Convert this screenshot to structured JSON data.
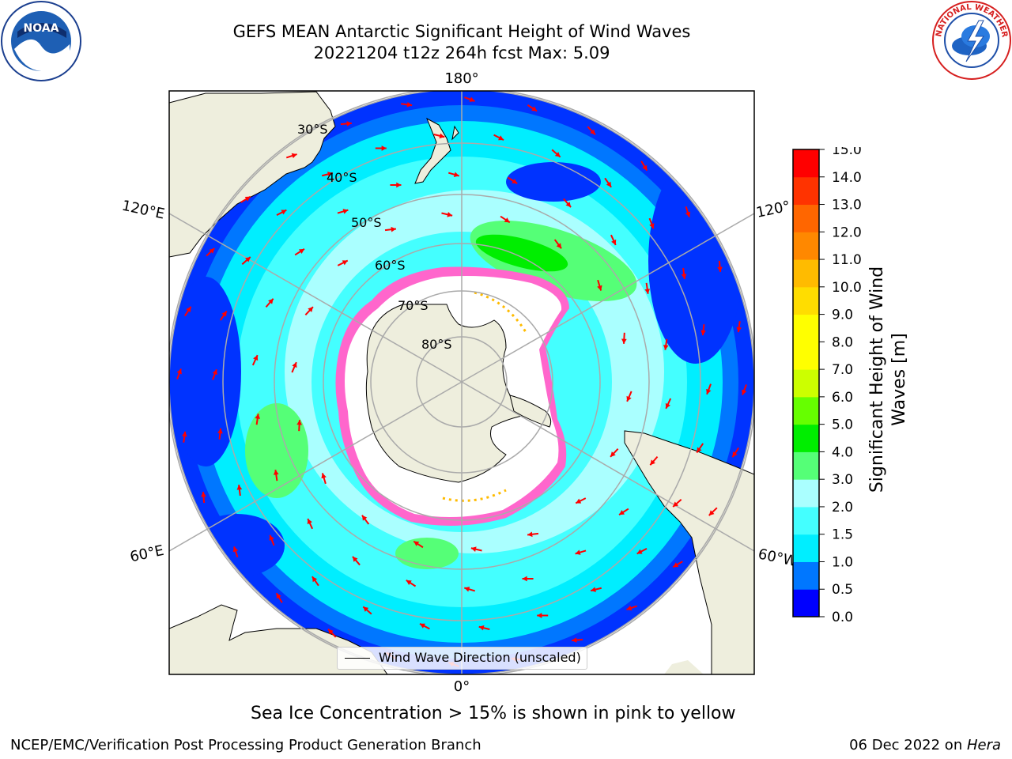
{
  "title": {
    "line1": "GEFS MEAN Antarctic Significant Height of Wind Waves",
    "line2": "20221204 t12z 264h fcst   Max: 5.09"
  },
  "logos": {
    "left": "noaa-logo",
    "right": "national-weather-service-logo",
    "left_text": "NOAA",
    "right_text": "NATIONAL WEATHER SERVICE"
  },
  "map": {
    "projection": "south-polar-stereographic",
    "lon_labels": {
      "top": "180°",
      "bottom": "0°",
      "upper_left": "120°E",
      "lower_left": "60°E",
      "upper_right": "120°",
      "lower_right": "60°W"
    },
    "lat_labels": [
      "30°S",
      "40°S",
      "50°S",
      "60°S",
      "70°S",
      "80°S"
    ],
    "legend": "Wind Wave Direction (unscaled)",
    "colors": {
      "land": "#eeeedd",
      "sea_ice": "#ffffff",
      "ice_edge": "#ff66cc",
      "arrows": "#ff0000",
      "grid": "#aaaaaa"
    }
  },
  "colorbar": {
    "label": "Significant Height of Wind Waves [m]",
    "ticks": [
      "0.0",
      "0.5",
      "1.0",
      "1.5",
      "2.0",
      "3.0",
      "4.0",
      "5.0",
      "6.0",
      "7.0",
      "8.0",
      "9.0",
      "10.0",
      "11.0",
      "12.0",
      "13.0",
      "14.0",
      "15.0"
    ],
    "colors": [
      "#0000ff",
      "#0077ff",
      "#00eeff",
      "#44ffff",
      "#aaffff",
      "#55ff77",
      "#00ee00",
      "#66ff00",
      "#ccff00",
      "#ffff00",
      "#ffff00",
      "#ffdd00",
      "#ffbb00",
      "#ff8800",
      "#ff6600",
      "#ff3300",
      "#ff0000"
    ]
  },
  "caption": "Sea Ice Concentration > 15% is shown in pink to yellow",
  "footer": {
    "left": "NCEP/EMC/Verification Post Processing Product Generation Branch",
    "right_prefix": "06 Dec 2022 on ",
    "right_machine": "Hera"
  }
}
